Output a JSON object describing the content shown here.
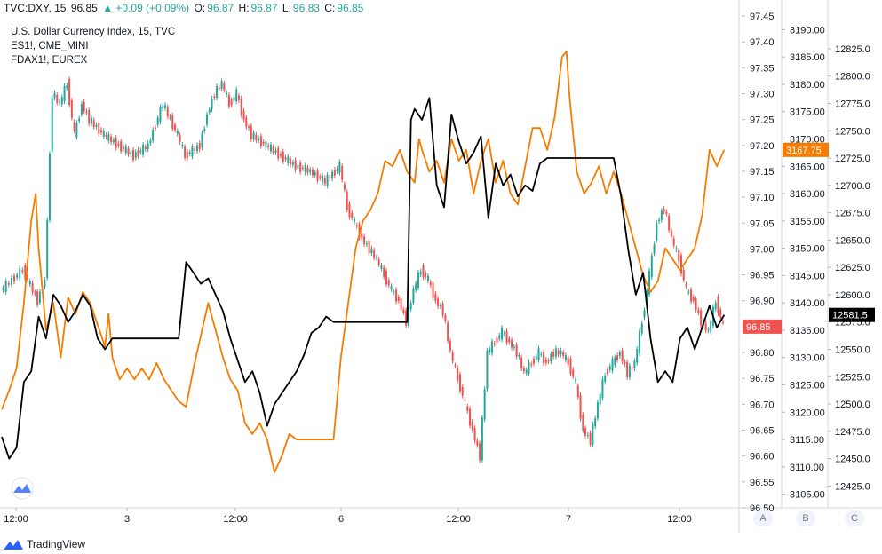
{
  "header": {
    "symbol": "TVC:DXY, 15",
    "last": "96.85",
    "change": "▲ +0.09 (+0.09%)",
    "o_label": "O:",
    "o_value": "96.87",
    "h_label": "H:",
    "h_value": "96.87",
    "l_label": "L:",
    "l_value": "96.83",
    "c_label": "C:",
    "c_value": "96.85"
  },
  "legend": {
    "main": "U.S. Dollar Currency Index, 15, TVC",
    "es": "ES1!, CME_MINI",
    "fdax": "FDAX1!, EUREX"
  },
  "footer": {
    "brand": "TradingView"
  },
  "scale_buttons": [
    "A",
    "B",
    "C"
  ],
  "colors": {
    "up": "#26a69a",
    "down": "#ef5350",
    "es": "#f57c00",
    "fdax": "#000000",
    "badge_dxy": "#ef5350",
    "badge_es": "#f57c00",
    "badge_fdax": "#000000"
  },
  "chart_data": {
    "type": "line",
    "x_ticks": [
      "12:00",
      "3",
      "12:00",
      "6",
      "12:00",
      "7",
      "12:00"
    ],
    "axes": {
      "A": {
        "min": 96.5,
        "max": 97.45,
        "ticks": [
          "97.45",
          "97.40",
          "97.35",
          "97.30",
          "97.25",
          "97.20",
          "97.15",
          "97.10",
          "97.05",
          "97.00",
          "96.95",
          "96.90",
          "96.85",
          "96.80",
          "96.75",
          "96.70",
          "96.65",
          "96.60",
          "96.55",
          "96.50"
        ],
        "last_label": "96.85"
      },
      "B": {
        "min": 3102.5,
        "max": 3192.5,
        "ticks": [
          "3190.00",
          "3185.00",
          "3180.00",
          "3175.00",
          "3170.00",
          "3165.00",
          "3160.00",
          "3155.00",
          "3150.00",
          "3145.00",
          "3140.00",
          "3135.00",
          "3130.00",
          "3125.00",
          "3120.00",
          "3115.00",
          "3110.00",
          "3105.00"
        ],
        "last_label": "3167.75"
      },
      "C": {
        "min": 12405,
        "max": 12855,
        "ticks": [
          "12825.0",
          "12800.0",
          "12775.0",
          "12750.0",
          "12725.0",
          "12700.0",
          "12675.0",
          "12650.0",
          "12625.0",
          "12600.0",
          "12575.0",
          "12550.0",
          "12525.0",
          "12500.0",
          "12475.0",
          "12450.0",
          "12425.0"
        ],
        "last_label": "12581.5"
      }
    },
    "x_range": [
      0,
      100
    ],
    "series": [
      {
        "axis": "A",
        "style": "candles",
        "points": [
          [
            0,
            96.92
          ],
          [
            3,
            96.96
          ],
          [
            5,
            96.9
          ],
          [
            6,
            96.94
          ],
          [
            7,
            97.3
          ],
          [
            8,
            97.28
          ],
          [
            9,
            97.32
          ],
          [
            10,
            97.22
          ],
          [
            11,
            97.28
          ],
          [
            12,
            97.25
          ],
          [
            14,
            97.22
          ],
          [
            16,
            97.2
          ],
          [
            18,
            97.18
          ],
          [
            20,
            97.2
          ],
          [
            22,
            97.28
          ],
          [
            24,
            97.22
          ],
          [
            25,
            97.18
          ],
          [
            27,
            97.2
          ],
          [
            28,
            97.26
          ],
          [
            29,
            97.3
          ],
          [
            30,
            97.32
          ],
          [
            31,
            97.28
          ],
          [
            32,
            97.3
          ],
          [
            33,
            97.25
          ],
          [
            34,
            97.22
          ],
          [
            36,
            97.2
          ],
          [
            38,
            97.18
          ],
          [
            40,
            97.16
          ],
          [
            42,
            97.15
          ],
          [
            44,
            97.13
          ],
          [
            46,
            97.16
          ],
          [
            47,
            97.08
          ],
          [
            48,
            97.05
          ],
          [
            49,
            97.02
          ],
          [
            50,
            97.0
          ],
          [
            51,
            96.98
          ],
          [
            52,
            96.95
          ],
          [
            53,
            96.92
          ],
          [
            54,
            96.9
          ],
          [
            55,
            96.86
          ],
          [
            56,
            96.92
          ],
          [
            57,
            96.96
          ],
          [
            58,
            96.94
          ],
          [
            59,
            96.9
          ],
          [
            60,
            96.88
          ],
          [
            61,
            96.8
          ],
          [
            62,
            96.75
          ],
          [
            63,
            96.7
          ],
          [
            64,
            96.65
          ],
          [
            65,
            96.6
          ],
          [
            66,
            96.8
          ],
          [
            67,
            96.82
          ],
          [
            68,
            96.84
          ],
          [
            69,
            96.82
          ],
          [
            70,
            96.8
          ],
          [
            71,
            96.76
          ],
          [
            72,
            96.78
          ],
          [
            73,
            96.8
          ],
          [
            74,
            96.78
          ],
          [
            75,
            96.8
          ],
          [
            76,
            96.8
          ],
          [
            77,
            96.78
          ],
          [
            78,
            96.74
          ],
          [
            79,
            96.65
          ],
          [
            80,
            96.63
          ],
          [
            81,
            96.7
          ],
          [
            82,
            96.76
          ],
          [
            83,
            96.78
          ],
          [
            84,
            96.8
          ],
          [
            85,
            96.76
          ],
          [
            86,
            96.78
          ],
          [
            87,
            96.86
          ],
          [
            88,
            96.95
          ],
          [
            89,
            97.05
          ],
          [
            90,
            97.08
          ],
          [
            91,
            97.02
          ],
          [
            92,
            96.98
          ],
          [
            93,
            96.92
          ],
          [
            94,
            96.9
          ],
          [
            95,
            96.86
          ],
          [
            96,
            96.84
          ],
          [
            97,
            96.9
          ],
          [
            98,
            96.85
          ]
        ]
      },
      {
        "name": "ES1!, CME_MINI",
        "axis": "B",
        "style": "line",
        "color": "#f57c00",
        "points": [
          [
            0,
            3120.5
          ],
          [
            1,
            3124
          ],
          [
            2,
            3128
          ],
          [
            3,
            3140
          ],
          [
            4,
            3155
          ],
          [
            4.6,
            3160
          ],
          [
            5,
            3150
          ],
          [
            6,
            3135
          ],
          [
            7,
            3140
          ],
          [
            8,
            3130
          ],
          [
            9,
            3141
          ],
          [
            10,
            3138
          ],
          [
            11,
            3142
          ],
          [
            12,
            3140
          ],
          [
            13,
            3136
          ],
          [
            14,
            3132
          ],
          [
            14.5,
            3138
          ],
          [
            15,
            3130
          ],
          [
            16,
            3126
          ],
          [
            17,
            3128
          ],
          [
            18,
            3126
          ],
          [
            19,
            3128
          ],
          [
            20,
            3126
          ],
          [
            21,
            3129
          ],
          [
            22,
            3126
          ],
          [
            23,
            3124
          ],
          [
            24,
            3122
          ],
          [
            25,
            3121
          ],
          [
            26,
            3128
          ],
          [
            27,
            3134
          ],
          [
            28,
            3140
          ],
          [
            29,
            3135
          ],
          [
            30,
            3130
          ],
          [
            31,
            3126
          ],
          [
            32,
            3124
          ],
          [
            33,
            3118
          ],
          [
            34,
            3116
          ],
          [
            35,
            3118
          ],
          [
            36,
            3115
          ],
          [
            37,
            3109
          ],
          [
            38,
            3112
          ],
          [
            39,
            3116
          ],
          [
            40,
            3115
          ],
          [
            41,
            3115
          ],
          [
            45,
            3115
          ],
          [
            46,
            3130
          ],
          [
            47,
            3140
          ],
          [
            48,
            3150
          ],
          [
            49,
            3155
          ],
          [
            50,
            3157
          ],
          [
            51,
            3160
          ],
          [
            52,
            3166
          ],
          [
            53,
            3165
          ],
          [
            54,
            3168
          ],
          [
            55,
            3164
          ],
          [
            56,
            3162
          ],
          [
            56.6,
            3170
          ],
          [
            57,
            3168
          ],
          [
            58,
            3164
          ],
          [
            59,
            3166
          ],
          [
            60,
            3162
          ],
          [
            61,
            3170
          ],
          [
            62,
            3166
          ],
          [
            63,
            3168
          ],
          [
            64,
            3160
          ],
          [
            65,
            3166
          ],
          [
            66,
            3170
          ],
          [
            67,
            3162
          ],
          [
            68,
            3166
          ],
          [
            69,
            3160
          ],
          [
            70,
            3158
          ],
          [
            71,
            3165
          ],
          [
            72,
            3172
          ],
          [
            73,
            3172
          ],
          [
            74,
            3168
          ],
          [
            75,
            3174
          ],
          [
            76,
            3185
          ],
          [
            76.6,
            3186
          ],
          [
            77,
            3178
          ],
          [
            78,
            3164
          ],
          [
            79,
            3160
          ],
          [
            80,
            3162
          ],
          [
            81,
            3165
          ],
          [
            82,
            3160
          ],
          [
            83,
            3164
          ],
          [
            84,
            3160
          ],
          [
            85,
            3155
          ],
          [
            86,
            3150
          ],
          [
            87,
            3145
          ],
          [
            88,
            3142
          ],
          [
            89,
            3144
          ],
          [
            90,
            3150
          ],
          [
            91,
            3148
          ],
          [
            92,
            3146
          ],
          [
            93,
            3148
          ],
          [
            94,
            3150
          ],
          [
            95,
            3156
          ],
          [
            96,
            3168
          ],
          [
            97,
            3165
          ],
          [
            98,
            3168
          ]
        ]
      },
      {
        "name": "FDAX1!, EUREX",
        "axis": "C",
        "style": "line",
        "color": "#000000",
        "points": [
          [
            0,
            12470
          ],
          [
            1,
            12450
          ],
          [
            2,
            12460
          ],
          [
            3,
            12520
          ],
          [
            4,
            12530
          ],
          [
            5,
            12580
          ],
          [
            6,
            12560
          ],
          [
            7,
            12600
          ],
          [
            8,
            12590
          ],
          [
            9,
            12575
          ],
          [
            10,
            12585
          ],
          [
            11,
            12600
          ],
          [
            12,
            12590
          ],
          [
            13,
            12560
          ],
          [
            14,
            12550
          ],
          [
            15,
            12560
          ],
          [
            16,
            12560
          ],
          [
            17,
            12560
          ],
          [
            24,
            12560
          ],
          [
            25,
            12630
          ],
          [
            26,
            12620
          ],
          [
            27,
            12610
          ],
          [
            28,
            12615
          ],
          [
            29,
            12600
          ],
          [
            30,
            12585
          ],
          [
            31,
            12560
          ],
          [
            32,
            12540
          ],
          [
            33,
            12520
          ],
          [
            34,
            12530
          ],
          [
            35,
            12510
          ],
          [
            36,
            12480
          ],
          [
            37,
            12500
          ],
          [
            38,
            12510
          ],
          [
            39,
            12520
          ],
          [
            40,
            12530
          ],
          [
            41,
            12545
          ],
          [
            42,
            12565
          ],
          [
            43,
            12570
          ],
          [
            44,
            12580
          ],
          [
            45,
            12575
          ],
          [
            55,
            12575
          ],
          [
            55.5,
            12760
          ],
          [
            56,
            12770
          ],
          [
            57,
            12760
          ],
          [
            58,
            12780
          ],
          [
            59,
            12700
          ],
          [
            60,
            12680
          ],
          [
            61,
            12765
          ],
          [
            62,
            12740
          ],
          [
            63,
            12720
          ],
          [
            64,
            12730
          ],
          [
            65,
            12745
          ],
          [
            66,
            12670
          ],
          [
            67,
            12720
          ],
          [
            68,
            12700
          ],
          [
            69,
            12710
          ],
          [
            70,
            12690
          ],
          [
            71,
            12700
          ],
          [
            72,
            12695
          ],
          [
            73,
            12720
          ],
          [
            74,
            12725
          ],
          [
            75,
            12725
          ],
          [
            83,
            12725
          ],
          [
            84,
            12690
          ],
          [
            85,
            12640
          ],
          [
            86,
            12600
          ],
          [
            87,
            12620
          ],
          [
            88,
            12560
          ],
          [
            89,
            12520
          ],
          [
            90,
            12530
          ],
          [
            91,
            12520
          ],
          [
            92,
            12560
          ],
          [
            93,
            12570
          ],
          [
            94,
            12550
          ],
          [
            95,
            12570
          ],
          [
            96,
            12590
          ],
          [
            97,
            12570
          ],
          [
            98,
            12581.5
          ]
        ]
      }
    ]
  }
}
